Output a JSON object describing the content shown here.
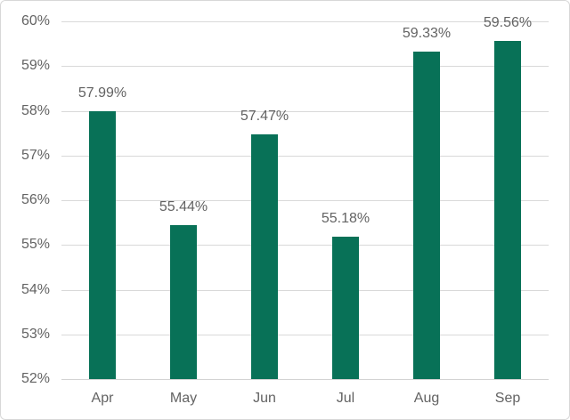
{
  "chart": {
    "background_color": "#ffffff",
    "frame_border_color": "#d8d8d8",
    "bar_color": "#087157",
    "text_color": "#636363",
    "gridline_color": "#d9d9d9",
    "axis_line_color": "#d3d3d3"
  },
  "chart_data": {
    "type": "bar",
    "title": "",
    "xlabel": "",
    "ylabel": "",
    "categories": [
      "Apr",
      "May",
      "Jun",
      "Jul",
      "Aug",
      "Sep"
    ],
    "values": [
      57.99,
      55.44,
      57.47,
      55.18,
      59.33,
      59.56
    ],
    "data_labels": [
      "57.99%",
      "55.44%",
      "57.47%",
      "55.18%",
      "59.33%",
      "59.56%"
    ],
    "ylim": [
      52,
      60
    ],
    "ytick_step": 1,
    "ytick_labels": [
      "52%",
      "53%",
      "54%",
      "55%",
      "56%",
      "57%",
      "58%",
      "59%",
      "60%"
    ],
    "grid": true,
    "legend": false,
    "data_label_position": "above-bar"
  }
}
